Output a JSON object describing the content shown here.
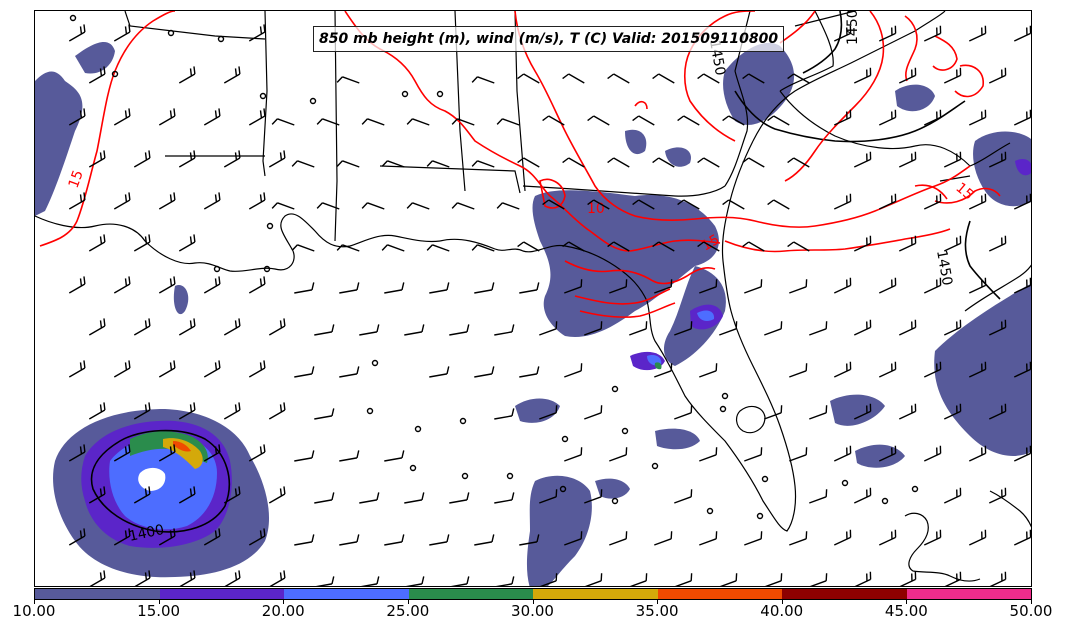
{
  "title": "850 mb height (m), wind (m/s), T (C) Valid: 201509110800",
  "colorbar": {
    "ticks": [
      "10.00",
      "15.00",
      "20.00",
      "25.00",
      "30.00",
      "35.00",
      "40.00",
      "45.00",
      "50.00"
    ],
    "colors": [
      "#575a9a",
      "#5b25c9",
      "#4d6dff",
      "#2a8c4c",
      "#d4a90a",
      "#f04a00",
      "#8e0000",
      "#ee2c8c"
    ]
  },
  "contours": {
    "height_labels": [
      "1400",
      "1450",
      "1450",
      "1450"
    ],
    "temperature_labels": [
      "15",
      "15",
      "10",
      "15"
    ]
  },
  "colors": {
    "temperature_contour": "#ff0000",
    "height_contour": "#000000",
    "coastline": "#000000",
    "wind_barb": "#000000"
  }
}
